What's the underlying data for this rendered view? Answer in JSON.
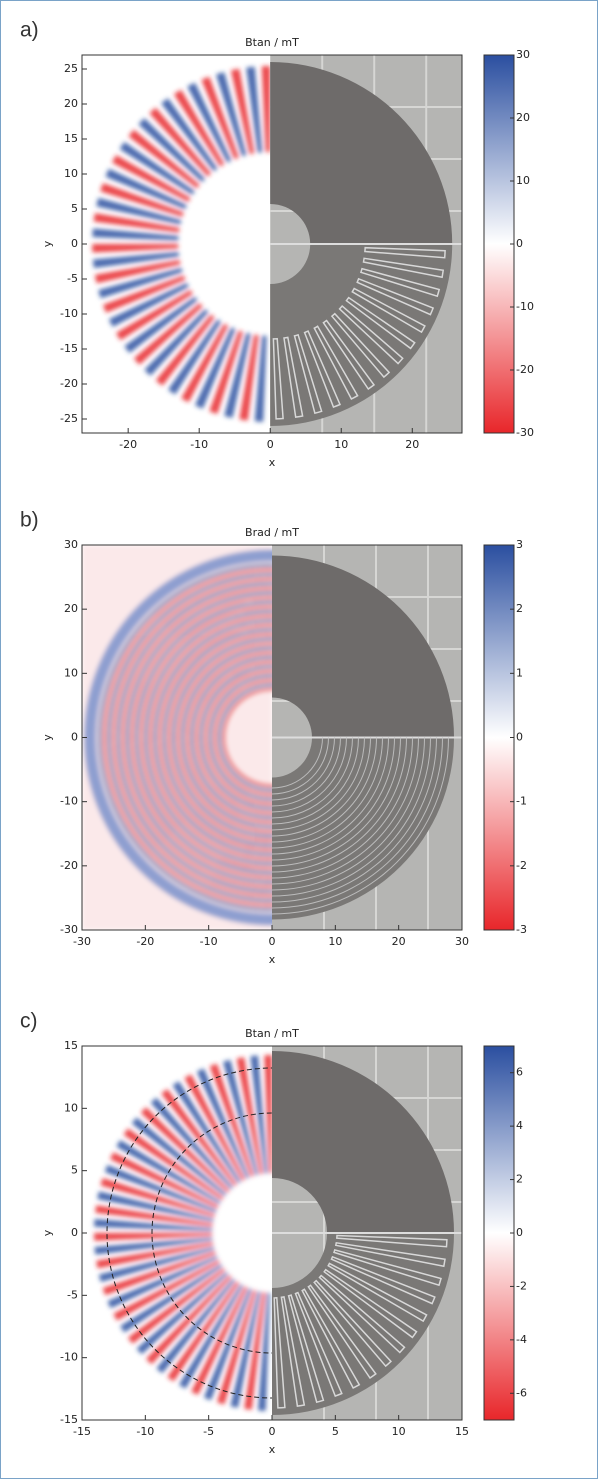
{
  "chart_data": [
    {
      "type": "heatmap",
      "panel_label": "a)",
      "title": "Btan / mT",
      "xlabel": "x",
      "ylabel": "y",
      "xlim": [
        -26.5,
        27
      ],
      "ylim": [
        -27,
        27
      ],
      "xticks": [
        -20,
        -10,
        0,
        10,
        20
      ],
      "yticks": [
        -25,
        -20,
        -15,
        -10,
        -5,
        0,
        5,
        10,
        15,
        20,
        25
      ],
      "colorbar": {
        "lim": [
          -30,
          30
        ],
        "ticks": [
          -30,
          -20,
          -10,
          0,
          10,
          20,
          30
        ],
        "colors": [
          "#e8262a",
          "#ffffff",
          "#2b4fa0"
        ]
      }
    },
    {
      "type": "heatmap",
      "panel_label": "b)",
      "title": "Brad / mT",
      "xlabel": "x",
      "ylabel": "y",
      "xlim": [
        -30,
        30
      ],
      "ylim": [
        -30,
        30
      ],
      "xticks": [
        -30,
        -20,
        -10,
        0,
        10,
        20,
        30
      ],
      "yticks": [
        -30,
        -20,
        -10,
        0,
        10,
        20,
        30
      ],
      "colorbar": {
        "lim": [
          -3,
          3
        ],
        "ticks": [
          -3,
          -2,
          -1,
          0,
          1,
          2,
          3
        ],
        "colors": [
          "#e8262a",
          "#ffffff",
          "#2b4fa0"
        ]
      }
    },
    {
      "type": "heatmap",
      "panel_label": "c)",
      "title": "Btan / mT",
      "xlabel": "x",
      "ylabel": "y",
      "xlim": [
        -15,
        15
      ],
      "ylim": [
        -15,
        15
      ],
      "xticks": [
        -15,
        -10,
        -5,
        0,
        5,
        10,
        15
      ],
      "yticks": [
        -15,
        -10,
        -5,
        0,
        5,
        10,
        15
      ],
      "colorbar": {
        "lim": [
          -7,
          7
        ],
        "ticks": [
          -6,
          -4,
          -2,
          0,
          2,
          4,
          6
        ],
        "colors": [
          "#e8262a",
          "#ffffff",
          "#2b4fa0"
        ]
      }
    }
  ]
}
